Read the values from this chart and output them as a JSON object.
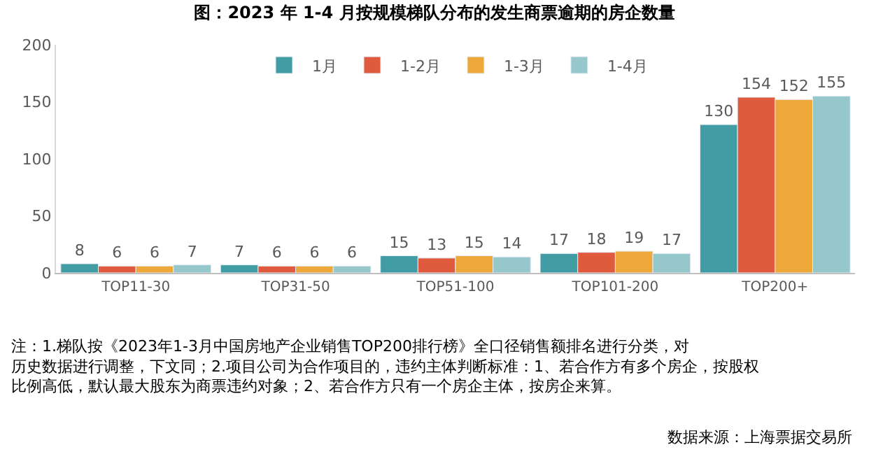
{
  "chart_data": {
    "type": "bar",
    "title": "图：2023 年 1-4 月按规模梯队分布的发生商票逾期的房企数量",
    "categories": [
      "TOP11-30",
      "TOP31-50",
      "TOP51-100",
      "TOP101-200",
      "TOP200+"
    ],
    "series": [
      {
        "name": "1月",
        "color": "#429ca3",
        "values": [
          8,
          7,
          15,
          17,
          130
        ]
      },
      {
        "name": "1-2月",
        "color": "#e05b3d",
        "values": [
          6,
          6,
          13,
          18,
          154
        ]
      },
      {
        "name": "1-3月",
        "color": "#eea83a",
        "values": [
          6,
          6,
          15,
          19,
          152
        ]
      },
      {
        "name": "1-4月",
        "color": "#96c8cb",
        "values": [
          7,
          6,
          14,
          17,
          155
        ]
      }
    ],
    "ylim": [
      0,
      200
    ],
    "yticks": [
      0,
      50,
      100,
      150,
      200
    ],
    "legend": "top",
    "data_labels": true,
    "annotations": [
      "注：1.梯队按《2023年1-3月中国房地产企业销售TOP200排行榜》全口径销售额排名进行分类，对历史数据进行调整，下文同；2.项目公司为合作项目的，违约主体判断标准：1、若合作方有多个房企，按股权比例高低，默认最大股东为商票违约对象；2、若合作方只有一个房企主体，按房企来算。",
      "数据来源：上海票据交易所"
    ]
  }
}
